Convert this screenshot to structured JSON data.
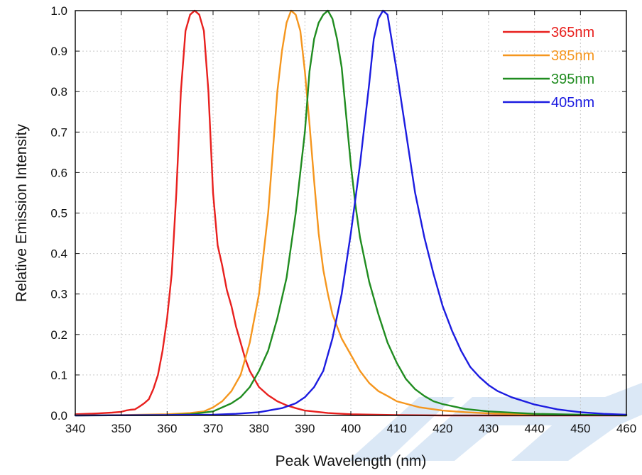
{
  "chart_data": {
    "type": "line",
    "title": "",
    "xlabel": "Peak Wavelength (nm)",
    "ylabel": "Relative Emission Intensity",
    "xlim": [
      340,
      460
    ],
    "ylim": [
      0,
      1.0
    ],
    "xticks": [
      "340",
      "350",
      "360",
      "370",
      "380",
      "390",
      "400",
      "410",
      "420",
      "430",
      "440",
      "450",
      "460"
    ],
    "yticks": [
      "0.0",
      "0.1",
      "0.2",
      "0.3",
      "0.4",
      "0.5",
      "0.6",
      "0.7",
      "0.8",
      "0.9",
      "1.0"
    ],
    "grid": true,
    "legend_position": "top-right",
    "series": [
      {
        "name": "365nm",
        "color": "#e8201e",
        "x": [
          340,
          345,
          348,
          350,
          351,
          352,
          353,
          354,
          355,
          356,
          357,
          358,
          359,
          360,
          361,
          362,
          363,
          364,
          365,
          366,
          367,
          368,
          369,
          370,
          371,
          372,
          373,
          374,
          375,
          376,
          377,
          378,
          380,
          382,
          384,
          386,
          388,
          390,
          395,
          400,
          410,
          420,
          440,
          460
        ],
        "y": [
          0.003,
          0.005,
          0.007,
          0.009,
          0.012,
          0.014,
          0.015,
          0.022,
          0.03,
          0.04,
          0.065,
          0.1,
          0.16,
          0.24,
          0.35,
          0.55,
          0.8,
          0.95,
          0.99,
          1.0,
          0.99,
          0.95,
          0.8,
          0.55,
          0.42,
          0.37,
          0.31,
          0.27,
          0.22,
          0.18,
          0.14,
          0.11,
          0.07,
          0.05,
          0.035,
          0.025,
          0.018,
          0.012,
          0.006,
          0.003,
          0.001,
          0.0,
          0.0,
          0.0
        ]
      },
      {
        "name": "385nm",
        "color": "#f5961e",
        "x": [
          340,
          350,
          360,
          365,
          368,
          370,
          372,
          374,
          376,
          378,
          380,
          382,
          383,
          384,
          385,
          386,
          387,
          388,
          389,
          390,
          391,
          392,
          393,
          394,
          395,
          396,
          398,
          400,
          402,
          404,
          406,
          408,
          410,
          415,
          420,
          425,
          430,
          440,
          450,
          460
        ],
        "y": [
          0.0,
          0.001,
          0.003,
          0.006,
          0.01,
          0.02,
          0.035,
          0.06,
          0.1,
          0.18,
          0.3,
          0.5,
          0.65,
          0.8,
          0.9,
          0.97,
          1.0,
          0.99,
          0.95,
          0.85,
          0.72,
          0.58,
          0.45,
          0.36,
          0.3,
          0.25,
          0.19,
          0.15,
          0.11,
          0.08,
          0.06,
          0.048,
          0.035,
          0.02,
          0.012,
          0.008,
          0.005,
          0.002,
          0.001,
          0.0
        ]
      },
      {
        "name": "395nm",
        "color": "#208c20",
        "x": [
          340,
          360,
          365,
          370,
          372,
          374,
          376,
          378,
          380,
          382,
          384,
          386,
          388,
          390,
          391,
          392,
          393,
          394,
          395,
          396,
          397,
          398,
          399,
          400,
          401,
          402,
          404,
          406,
          408,
          410,
          412,
          414,
          416,
          418,
          420,
          425,
          430,
          440,
          450,
          460
        ],
        "y": [
          0.0,
          0.001,
          0.003,
          0.01,
          0.02,
          0.03,
          0.045,
          0.07,
          0.11,
          0.16,
          0.24,
          0.34,
          0.5,
          0.7,
          0.85,
          0.93,
          0.97,
          0.99,
          1.0,
          0.98,
          0.93,
          0.86,
          0.74,
          0.62,
          0.52,
          0.44,
          0.33,
          0.25,
          0.18,
          0.13,
          0.09,
          0.065,
          0.048,
          0.035,
          0.028,
          0.016,
          0.01,
          0.004,
          0.002,
          0.0
        ]
      },
      {
        "name": "405nm",
        "color": "#1c1ce0",
        "x": [
          340,
          360,
          370,
          375,
          380,
          385,
          388,
          390,
          392,
          394,
          396,
          398,
          400,
          402,
          404,
          405,
          406,
          407,
          408,
          410,
          412,
          414,
          416,
          418,
          420,
          422,
          424,
          426,
          428,
          430,
          432,
          435,
          440,
          445,
          450,
          455,
          460
        ],
        "y": [
          0.0,
          0.001,
          0.002,
          0.004,
          0.008,
          0.018,
          0.03,
          0.045,
          0.07,
          0.11,
          0.19,
          0.3,
          0.45,
          0.62,
          0.82,
          0.93,
          0.98,
          1.0,
          0.99,
          0.85,
          0.7,
          0.55,
          0.44,
          0.35,
          0.27,
          0.21,
          0.16,
          0.12,
          0.095,
          0.075,
          0.06,
          0.045,
          0.027,
          0.015,
          0.008,
          0.004,
          0.002
        ]
      }
    ]
  }
}
